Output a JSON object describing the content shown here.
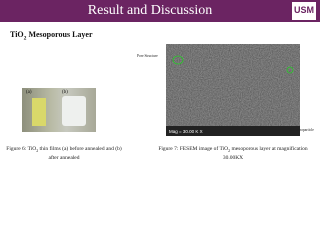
{
  "header": {
    "title": "Result and Discussion",
    "logo": "USM"
  },
  "section": {
    "pre": "TiO",
    "sub": "2",
    "post": " Mesoporous Layer"
  },
  "figure6": {
    "label_a": "(a)",
    "label_b": "(b)",
    "caption": {
      "pre": "Figure 6: TiO",
      "sub": "2",
      "post": " thin films (a) before annealed and (b) after annealed"
    }
  },
  "figure7": {
    "pore_label": "Pore Structure",
    "particle_label": {
      "pre": "TiO",
      "sub": "2",
      "post": " nanoparticle"
    },
    "mag": "Mag = 30.00 K X",
    "caption": {
      "pre": "Figure 7: FESEM image of TiO",
      "sub": "2",
      "post": " mesoporous layer at magnification 30.00KX"
    }
  }
}
